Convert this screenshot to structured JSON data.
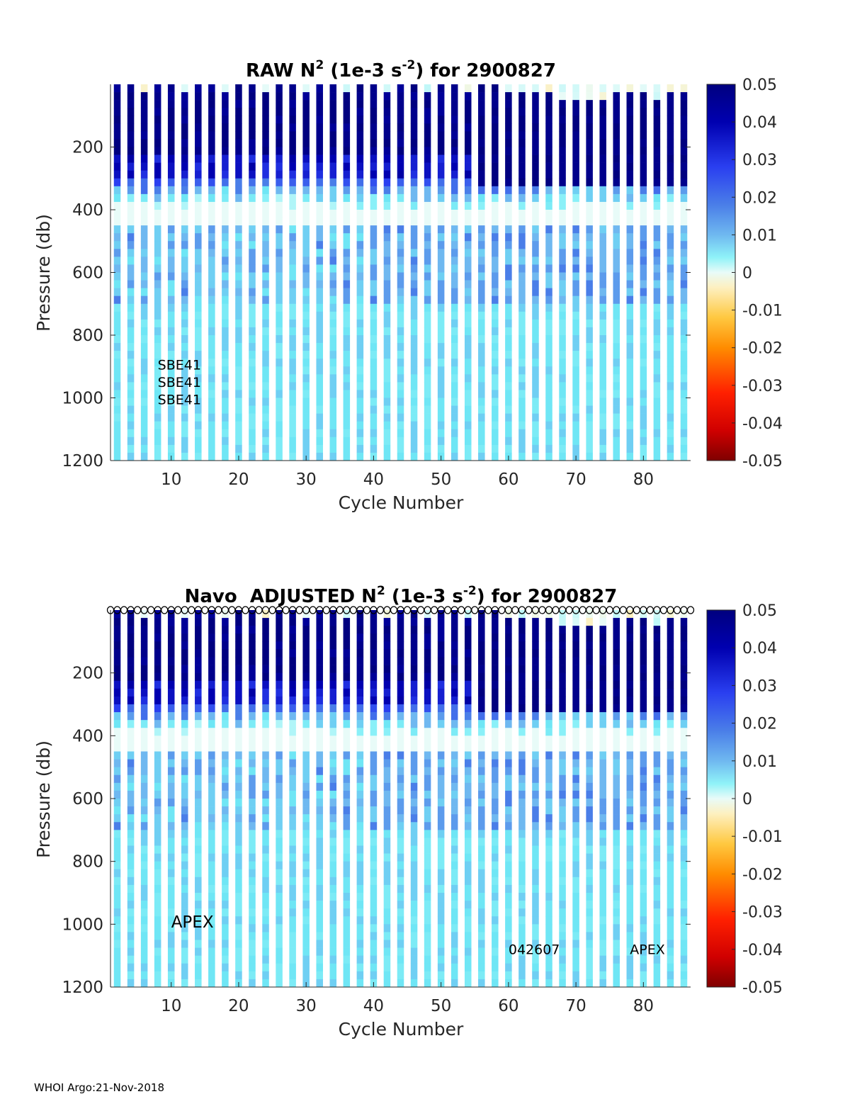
{
  "footer": "WHOI Argo:21-Nov-2018",
  "colorbar": {
    "ticks": [
      "0.05",
      "0.04",
      "0.03",
      "0.02",
      "0.01",
      "0",
      "-0.01",
      "-0.02",
      "-0.03",
      "-0.04",
      "-0.05"
    ],
    "range": [
      -0.05,
      0.05
    ],
    "colors": {
      "deep_blue": "#00007f",
      "blue": "#2020e8",
      "mid_blue": "#3f7fe6",
      "light_blue": "#6fb8f0",
      "cyan": "#8ff2f8",
      "pale": "#c8fafa",
      "cream": "#fdf3c8",
      "orange": "#ffa500",
      "red": "#ff2000",
      "dark_red": "#7f0000"
    }
  },
  "chart_data": [
    {
      "type": "heatmap",
      "title_parts": [
        "RAW N",
        "2",
        " (1e-3 s",
        "-2",
        ") for 2900827"
      ],
      "xlabel": "Cycle Number",
      "ylabel": "Pressure (db)",
      "xlim": [
        1,
        87
      ],
      "ylim": [
        0,
        1200
      ],
      "xticks": [
        "10",
        "20",
        "30",
        "40",
        "50",
        "60",
        "70",
        "80"
      ],
      "yticks": [
        "200",
        "400",
        "600",
        "800",
        "1000",
        "1200"
      ],
      "annotations": [
        {
          "text": "SBE41",
          "cycle": 8,
          "pressure": 910
        },
        {
          "text": "SBE41",
          "cycle": 8,
          "pressure": 965
        },
        {
          "text": "SBE41",
          "cycle": 8,
          "pressure": 1020
        }
      ],
      "markers": "none",
      "series_note": "N^2 profiles (1e-3 s^-2) every other cycle: strong stratification (>0.04) above ~200 db, decreasing to ~0.005-0.01 at depth"
    },
    {
      "type": "heatmap",
      "title_parts": [
        "Navo  ADJUSTED N",
        "2",
        " (1e-3 s",
        "-2",
        ") for 2900827"
      ],
      "xlabel": "Cycle Number",
      "ylabel": "Pressure (db)",
      "xlim": [
        1,
        87
      ],
      "ylim": [
        0,
        1200
      ],
      "xticks": [
        "10",
        "20",
        "30",
        "40",
        "50",
        "60",
        "70",
        "80"
      ],
      "yticks": [
        "200",
        "400",
        "600",
        "800",
        "1000",
        "1200"
      ],
      "annotations": [
        {
          "text": "APEX",
          "cycle": 10,
          "pressure": 1010,
          "size": "large"
        },
        {
          "text": "042607",
          "cycle": 60,
          "pressure": 1095
        },
        {
          "text": "APEX",
          "cycle": 78,
          "pressure": 1095
        }
      ],
      "markers": "surface-circles",
      "series_note": "Adjusted N^2 profiles, nearly identical to raw"
    }
  ]
}
